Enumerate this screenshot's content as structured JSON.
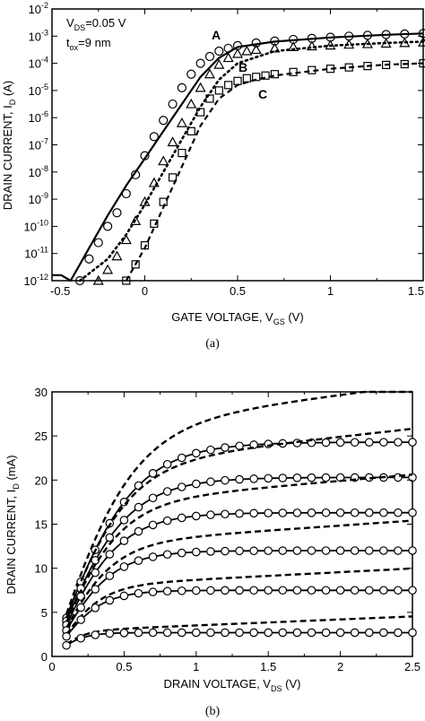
{
  "chart_data": [
    {
      "type": "line",
      "panel": "(a)",
      "xlabel": "GATE VOLTAGE, V",
      "xlabel_sub": "GS",
      "xlabel_unit": " (V)",
      "ylabel": "DRAIN CURRENT, I",
      "ylabel_sub": "D",
      "ylabel_unit": " (A)",
      "xlim": [
        -0.5,
        1.5
      ],
      "ylim_log10": [
        -12,
        -2
      ],
      "yscale": "log",
      "x_ticks": [
        "-0.5",
        "0",
        "0.5",
        "1",
        "1.5"
      ],
      "y_tick_exponents": [
        "-2",
        "-3",
        "-4",
        "-5",
        "-6",
        "-7",
        "-8",
        "-9",
        "-10",
        "-11",
        "-12"
      ],
      "annotations": {
        "vds": {
          "pre": "V",
          "sub": "DS",
          "post": "=0.05 V"
        },
        "tox": {
          "pre": "t",
          "sub": "ox",
          "post": "=9 nm"
        }
      },
      "curve_labels": [
        "A",
        "B",
        "C"
      ],
      "series": [
        {
          "name": "A",
          "style": "solid",
          "x": [
            -0.5,
            -0.45,
            -0.4,
            -0.35,
            -0.3,
            -0.2,
            -0.1,
            0.0,
            0.1,
            0.2,
            0.3,
            0.4,
            0.5,
            0.7,
            1.0,
            1.3,
            1.5
          ],
          "log10_y": [
            -11.8,
            -11.8,
            -12.0,
            -11.4,
            -10.8,
            -9.6,
            -8.5,
            -7.5,
            -6.5,
            -5.5,
            -4.5,
            -3.8,
            -3.4,
            -3.2,
            -3.05,
            -2.95,
            -2.9
          ]
        },
        {
          "name": "A",
          "style": "circle",
          "x": [
            -0.35,
            -0.3,
            -0.25,
            -0.2,
            -0.15,
            -0.1,
            -0.05,
            0.0,
            0.05,
            0.1,
            0.15,
            0.2,
            0.25,
            0.3,
            0.35,
            0.4,
            0.45,
            0.5,
            0.6,
            0.7,
            0.8,
            0.9,
            1.0,
            1.1,
            1.2,
            1.3,
            1.4,
            1.5
          ],
          "log10_y": [
            -12.0,
            -11.2,
            -10.6,
            -10.0,
            -9.5,
            -8.8,
            -8.1,
            -7.4,
            -6.7,
            -6.1,
            -5.5,
            -4.9,
            -4.4,
            -4.0,
            -3.75,
            -3.55,
            -3.45,
            -3.35,
            -3.25,
            -3.18,
            -3.12,
            -3.08,
            -3.04,
            -3.0,
            -2.97,
            -2.94,
            -2.92,
            -2.9
          ]
        },
        {
          "name": "B",
          "style": "dotted",
          "x": [
            -0.35,
            -0.2,
            -0.1,
            0.0,
            0.1,
            0.2,
            0.3,
            0.4,
            0.5,
            0.7,
            1.0,
            1.3,
            1.5
          ],
          "log10_y": [
            -12.0,
            -11.2,
            -10.3,
            -9.2,
            -8.0,
            -6.8,
            -5.6,
            -4.6,
            -4.0,
            -3.55,
            -3.35,
            -3.25,
            -3.2
          ]
        },
        {
          "name": "B",
          "style": "triangle",
          "x": [
            -0.25,
            -0.2,
            -0.15,
            -0.1,
            -0.05,
            0.0,
            0.05,
            0.1,
            0.15,
            0.2,
            0.25,
            0.3,
            0.35,
            0.4,
            0.45,
            0.5,
            0.55,
            0.6,
            0.7,
            0.8,
            0.9,
            1.0,
            1.1,
            1.2,
            1.3,
            1.4,
            1.5
          ],
          "log10_y": [
            -12.0,
            -11.6,
            -11.1,
            -10.5,
            -9.8,
            -9.1,
            -8.4,
            -7.6,
            -6.9,
            -6.2,
            -5.5,
            -4.9,
            -4.4,
            -4.05,
            -3.8,
            -3.65,
            -3.55,
            -3.5,
            -3.45,
            -3.4,
            -3.37,
            -3.34,
            -3.31,
            -3.29,
            -3.27,
            -3.25,
            -3.23
          ]
        },
        {
          "name": "C",
          "style": "dashed",
          "x": [
            -0.1,
            0.0,
            0.1,
            0.2,
            0.3,
            0.4,
            0.5,
            0.6,
            0.7,
            1.0,
            1.3,
            1.5
          ],
          "log10_y": [
            -12.0,
            -10.8,
            -9.3,
            -7.8,
            -6.3,
            -5.3,
            -4.8,
            -4.6,
            -4.45,
            -4.2,
            -4.05,
            -4.0
          ]
        },
        {
          "name": "C",
          "style": "square",
          "x": [
            -0.1,
            -0.05,
            0.0,
            0.05,
            0.1,
            0.15,
            0.2,
            0.25,
            0.3,
            0.35,
            0.4,
            0.45,
            0.5,
            0.55,
            0.6,
            0.65,
            0.7,
            0.8,
            0.9,
            1.0,
            1.1,
            1.2,
            1.3,
            1.4,
            1.5
          ],
          "log10_y": [
            -12.0,
            -11.4,
            -10.7,
            -9.9,
            -9.1,
            -8.2,
            -7.3,
            -6.5,
            -5.8,
            -5.3,
            -5.0,
            -4.8,
            -4.65,
            -4.55,
            -4.5,
            -4.45,
            -4.4,
            -4.32,
            -4.25,
            -4.2,
            -4.15,
            -4.1,
            -4.06,
            -4.03,
            -4.0
          ]
        }
      ]
    },
    {
      "type": "line",
      "panel": "(b)",
      "xlabel": "DRAIN VOLTAGE, V",
      "xlabel_sub": "DS",
      "xlabel_unit": " (V)",
      "ylabel": "DRAIN CURRENT, I",
      "ylabel_sub": "D",
      "ylabel_unit": " (mA)",
      "xlim": [
        0,
        2.5
      ],
      "ylim": [
        0,
        30
      ],
      "x_ticks": [
        "0",
        "0.5",
        "1",
        "1.5",
        "2",
        "2.5"
      ],
      "y_ticks": [
        "0",
        "5",
        "10",
        "15",
        "20",
        "25",
        "30"
      ],
      "families": [
        {
          "isat": 24.3,
          "dash_end": 29.5,
          "vk": 0.55
        },
        {
          "isat": 20.3,
          "dash_end": 24.8,
          "vk": 0.5
        },
        {
          "isat": 16.3,
          "dash_end": 19.8,
          "vk": 0.45
        },
        {
          "isat": 12.0,
          "dash_end": 14.8,
          "vk": 0.4
        },
        {
          "isat": 7.5,
          "dash_end": 9.6,
          "vk": 0.32
        },
        {
          "isat": 2.7,
          "dash_end": 4.4,
          "vk": 0.2
        }
      ],
      "marker_x": [
        0.1,
        0.2,
        0.3,
        0.4,
        0.5,
        0.6,
        0.7,
        0.8,
        0.9,
        1.0,
        1.1,
        1.2,
        1.3,
        1.4,
        1.5,
        1.6,
        1.7,
        1.8,
        1.9,
        2.0,
        2.1,
        2.2,
        2.3,
        2.4,
        2.5
      ],
      "marker_style": "circle"
    }
  ]
}
